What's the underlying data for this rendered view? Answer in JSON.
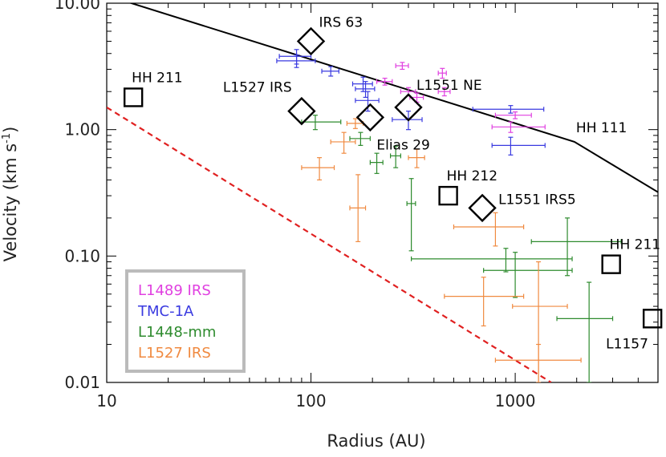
{
  "chart_data": {
    "type": "scatter",
    "title": "",
    "xlabel": "Radius (AU)",
    "ylabel": "Velocity (km s",
    "ylabel_sup": "-1",
    "ylabel_tail": ")",
    "xscale": "log",
    "yscale": "log",
    "xlim": [
      10,
      5000
    ],
    "ylim": [
      0.01,
      10
    ],
    "x_ticks": [
      {
        "value": 10,
        "label": "10"
      },
      {
        "value": 100,
        "label": "100"
      },
      {
        "value": 1000,
        "label": "1000"
      }
    ],
    "y_ticks": [
      {
        "value": 0.01,
        "label": "0.01"
      },
      {
        "value": 0.1,
        "label": "0.10"
      },
      {
        "value": 1,
        "label": "1.00"
      },
      {
        "value": 10,
        "label": "10.00"
      }
    ],
    "legend_position": "bottom-left",
    "series": [
      {
        "name": "L1489 IRS",
        "color": "#e040e0",
        "points": [
          {
            "x": 230,
            "y": 2.4,
            "xerr": [
              20,
              20
            ],
            "yerr": [
              0.15,
              0.15
            ]
          },
          {
            "x": 280,
            "y": 3.2,
            "xerr": [
              20,
              20
            ],
            "yerr": [
              0.2,
              0.2
            ]
          },
          {
            "x": 300,
            "y": 2.0,
            "xerr": [
              25,
              25
            ],
            "yerr": [
              0.15,
              0.15
            ]
          },
          {
            "x": 330,
            "y": 1.8,
            "xerr": [
              25,
              25
            ],
            "yerr": [
              0.15,
              0.15
            ]
          },
          {
            "x": 440,
            "y": 2.8,
            "xerr": [
              20,
              20
            ],
            "yerr": [
              0.25,
              0.25
            ]
          },
          {
            "x": 450,
            "y": 2.0,
            "xerr": [
              30,
              30
            ],
            "yerr": [
              0.15,
              0.15
            ]
          },
          {
            "x": 1000,
            "y": 1.3,
            "xerr": [
              200,
              200
            ],
            "yerr": [
              0.08,
              0.08
            ]
          },
          {
            "x": 950,
            "y": 1.05,
            "xerr": [
              180,
              450
            ],
            "yerr": [
              0.1,
              0.1
            ]
          }
        ]
      },
      {
        "name": "TMC-1A",
        "color": "#3a3ae0",
        "points": [
          {
            "x": 85,
            "y": 3.8,
            "xerr": [
              15,
              15
            ],
            "yerr": [
              0.5,
              0.5
            ]
          },
          {
            "x": 85,
            "y": 3.5,
            "xerr": [
              17,
              20
            ],
            "yerr": [
              0.4,
              0.4
            ]
          },
          {
            "x": 125,
            "y": 2.9,
            "xerr": [
              12,
              12
            ],
            "yerr": [
              0.25,
              0.25
            ]
          },
          {
            "x": 180,
            "y": 2.3,
            "xerr": [
              20,
              20
            ],
            "yerr": [
              0.3,
              0.3
            ]
          },
          {
            "x": 185,
            "y": 2.1,
            "xerr": [
              20,
              20
            ],
            "yerr": [
              0.3,
              0.3
            ]
          },
          {
            "x": 190,
            "y": 1.7,
            "xerr": [
              25,
              25
            ],
            "yerr": [
              0.3,
              0.3
            ]
          },
          {
            "x": 300,
            "y": 1.2,
            "xerr": [
              50,
              50
            ],
            "yerr": [
              0.2,
              0.2
            ]
          },
          {
            "x": 950,
            "y": 1.45,
            "xerr": [
              330,
              430
            ],
            "yerr": [
              0.1,
              0.1
            ]
          },
          {
            "x": 950,
            "y": 0.75,
            "xerr": [
              180,
              450
            ],
            "yerr": [
              0.12,
              0.12
            ]
          }
        ]
      },
      {
        "name": "L1448-mm",
        "color": "#2e8b2e",
        "points": [
          {
            "x": 105,
            "y": 1.15,
            "xerr": [
              15,
              35
            ],
            "yerr": [
              0.15,
              0.15
            ]
          },
          {
            "x": 175,
            "y": 0.85,
            "xerr": [
              20,
              20
            ],
            "yerr": [
              0.1,
              0.1
            ]
          },
          {
            "x": 210,
            "y": 0.55,
            "xerr": [
              15,
              15
            ],
            "yerr": [
              0.1,
              0.1
            ]
          },
          {
            "x": 260,
            "y": 0.62,
            "xerr": [
              15,
              15
            ],
            "yerr": [
              0.12,
              0.12
            ]
          },
          {
            "x": 310,
            "y": 0.26,
            "xerr": [
              15,
              15
            ],
            "yerr": [
              0.15,
              0.15
            ]
          },
          {
            "x": 900,
            "y": 0.095,
            "xerr": [
              590,
              1000
            ],
            "yerr": [
              0.02,
              0.02
            ]
          },
          {
            "x": 1800,
            "y": 0.13,
            "xerr": [
              600,
              1500
            ],
            "yerr": [
              0.06,
              0.07
            ]
          },
          {
            "x": 1000,
            "y": 0.077,
            "xerr": [
              300,
              900
            ],
            "yerr": [
              0.03,
              0.03
            ]
          },
          {
            "x": 2300,
            "y": 0.032,
            "xerr": [
              700,
              700
            ],
            "yerr": [
              0.022,
              0.03
            ]
          }
        ]
      },
      {
        "name": "L1527 IRS",
        "color": "#f08a40",
        "points": [
          {
            "x": 110,
            "y": 0.5,
            "xerr": [
              20,
              20
            ],
            "yerr": [
              0.1,
              0.1
            ]
          },
          {
            "x": 145,
            "y": 0.8,
            "xerr": [
              20,
              20
            ],
            "yerr": [
              0.15,
              0.15
            ]
          },
          {
            "x": 165,
            "y": 1.12,
            "xerr": [
              15,
              15
            ],
            "yerr": [
              0.1,
              0.1
            ]
          },
          {
            "x": 170,
            "y": 0.24,
            "xerr": [
              15,
              15
            ],
            "yerr": [
              0.11,
              0.2
            ]
          },
          {
            "x": 330,
            "y": 0.6,
            "xerr": [
              30,
              30
            ],
            "yerr": [
              0.1,
              0.1
            ]
          },
          {
            "x": 800,
            "y": 0.17,
            "xerr": [
              300,
              300
            ],
            "yerr": [
              0.05,
              0.05
            ]
          },
          {
            "x": 700,
            "y": 0.048,
            "xerr": [
              250,
              400
            ],
            "yerr": [
              0.02,
              0.02
            ]
          },
          {
            "x": 1300,
            "y": 0.04,
            "xerr": [
              330,
              500
            ],
            "yerr": [
              0.03,
              0.05
            ]
          },
          {
            "x": 1300,
            "y": 0.015,
            "xerr": [
              500,
              800
            ],
            "yerr": [
              0.005,
              0.005
            ]
          }
        ]
      }
    ],
    "diamond_markers": [
      {
        "label": "IRS 63",
        "x": 100,
        "y": 5.0,
        "label_side": "right"
      },
      {
        "label": "L1527 IRS",
        "x": 90,
        "y": 1.4,
        "label_side": "above-left"
      },
      {
        "label": "Elias 29",
        "x": 195,
        "y": 1.25,
        "label_side": "below-right"
      },
      {
        "label": "L1551 NE",
        "x": 300,
        "y": 1.5,
        "label_side": "above-right"
      },
      {
        "label": "L1551 IRS5",
        "x": 690,
        "y": 0.24,
        "label_side": "right"
      }
    ],
    "square_markers": [
      {
        "label": "HH 211",
        "x": 13.5,
        "y": 1.8,
        "label_side": "above"
      },
      {
        "label": "HH 212",
        "x": 470,
        "y": 0.3,
        "label_side": "above"
      },
      {
        "label": "HH 211",
        "x": 2950,
        "y": 0.086,
        "label_side": "above"
      },
      {
        "label": "L1157",
        "x": 4700,
        "y": 0.032,
        "label_side": "below-left"
      }
    ],
    "black_line": {
      "label": "HH 111",
      "points": [
        [
          12,
          10.5
        ],
        [
          1950,
          0.8
        ],
        [
          5000,
          0.32
        ]
      ]
    },
    "red_dashed_line": {
      "color": "#e02020",
      "points": [
        [
          10,
          1.5
        ],
        [
          1500,
          0.01
        ]
      ]
    }
  }
}
